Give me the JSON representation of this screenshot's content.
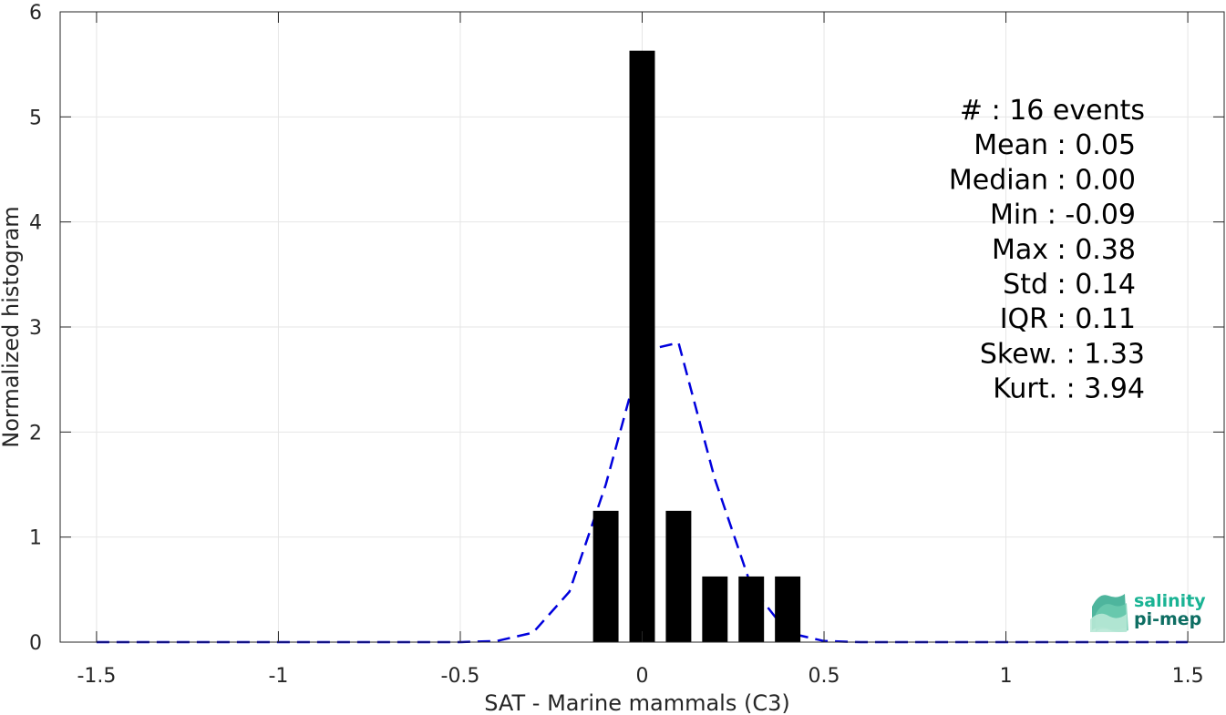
{
  "chart_data": {
    "type": "bar",
    "xlabel": "SAT - Marine mammals (C3)",
    "ylabel": "Normalized histogram",
    "xlim": [
      -1.6,
      1.6
    ],
    "ylim": [
      0,
      6
    ],
    "xticks": [
      -1.5,
      -1,
      -0.5,
      0,
      0.5,
      1,
      1.5
    ],
    "xtick_labels": [
      "-1.5",
      "-1",
      "-0.5",
      "0",
      "0.5",
      "1",
      "1.5"
    ],
    "yticks": [
      0,
      1,
      2,
      3,
      4,
      5,
      6
    ],
    "ytick_labels": [
      "0",
      "1",
      "2",
      "3",
      "4",
      "5",
      "6"
    ],
    "grid": true,
    "bar_width": 0.07,
    "bar_color": "#000000",
    "bars": [
      {
        "x": -0.1,
        "value": 1.25
      },
      {
        "x": 0.0,
        "value": 5.63
      },
      {
        "x": 0.1,
        "value": 1.25
      },
      {
        "x": 0.2,
        "value": 0.625
      },
      {
        "x": 0.3,
        "value": 0.625
      },
      {
        "x": 0.4,
        "value": 0.625
      }
    ],
    "fit_curve": {
      "style": "dashed",
      "color": "#0000dd",
      "x": [
        -1.5,
        -1.4,
        -1.3,
        -1.2,
        -1.1,
        -1.0,
        -0.9,
        -0.8,
        -0.7,
        -0.6,
        -0.5,
        -0.4,
        -0.3,
        -0.2,
        -0.1,
        0.0,
        0.1,
        0.2,
        0.3,
        0.4,
        0.5,
        0.6,
        0.7,
        0.8,
        0.9,
        1.0,
        1.1,
        1.2,
        1.3,
        1.4,
        1.5
      ],
      "y": [
        0,
        0,
        0,
        0,
        0,
        0,
        0,
        0,
        0,
        0,
        0,
        0.01,
        0.09,
        0.48,
        1.5,
        2.77,
        2.85,
        1.55,
        0.53,
        0.09,
        0.01,
        0,
        0,
        0,
        0,
        0,
        0,
        0,
        0,
        0,
        0
      ]
    },
    "stats": [
      "#  : 16 events",
      "Mean : 0.05",
      "Median : 0.00",
      "Min : -0.09",
      "Max : 0.38",
      "Std : 0.14",
      "IQR : 0.11",
      "Skew. : 1.33",
      "Kurt. : 3.94"
    ]
  },
  "logo": {
    "line1": "salinity",
    "line2": "pi-mep",
    "color1": "#1ab394",
    "color2": "#0e6e63"
  }
}
